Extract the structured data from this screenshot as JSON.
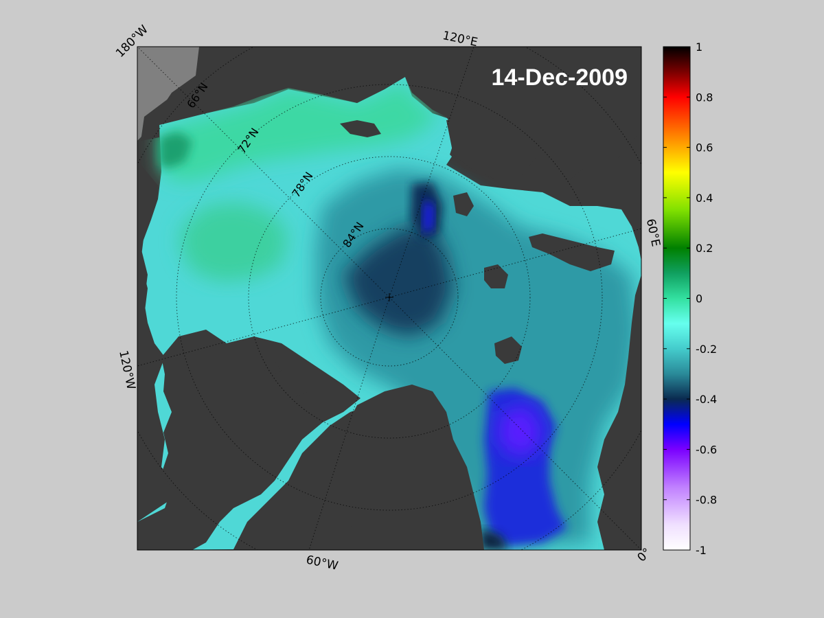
{
  "map": {
    "date": "14-Dec-2009",
    "longitude_labels": [
      "180°W",
      "120°E",
      "60°E",
      "0°",
      "60°W",
      "120°W"
    ],
    "latitude_labels": [
      "66°N",
      "72°N",
      "78°N",
      "84°N"
    ],
    "colors": {
      "background": "#cbcbcb",
      "land": "#3a3a3a",
      "ice_shelf_land": "#808080",
      "graticule": "#000000"
    }
  },
  "colorbar": {
    "min": -1,
    "max": 1,
    "tick_labels": [
      "1",
      "0.8",
      "0.6",
      "0.4",
      "0.2",
      "0",
      "-0.2",
      "-0.4",
      "-0.6",
      "-0.8",
      "-1"
    ],
    "stops": [
      {
        "value": 1.0,
        "color": "#000000"
      },
      {
        "value": 0.9,
        "color": "#7a0000"
      },
      {
        "value": 0.8,
        "color": "#ff0000"
      },
      {
        "value": 0.65,
        "color": "#ff8000"
      },
      {
        "value": 0.5,
        "color": "#ffff00"
      },
      {
        "value": 0.35,
        "color": "#80e000"
      },
      {
        "value": 0.2,
        "color": "#008000"
      },
      {
        "value": 0.1,
        "color": "#10a060"
      },
      {
        "value": 0.0,
        "color": "#33e0a0"
      },
      {
        "value": -0.1,
        "color": "#66ffee"
      },
      {
        "value": -0.2,
        "color": "#44cccc"
      },
      {
        "value": -0.3,
        "color": "#2a8a99"
      },
      {
        "value": -0.4,
        "color": "#0a2a50"
      },
      {
        "value": -0.5,
        "color": "#0000ff"
      },
      {
        "value": -0.6,
        "color": "#7a00ff"
      },
      {
        "value": -0.75,
        "color": "#c080ff"
      },
      {
        "value": -0.9,
        "color": "#f0e0ff"
      },
      {
        "value": -1.0,
        "color": "#ffffff"
      }
    ]
  }
}
